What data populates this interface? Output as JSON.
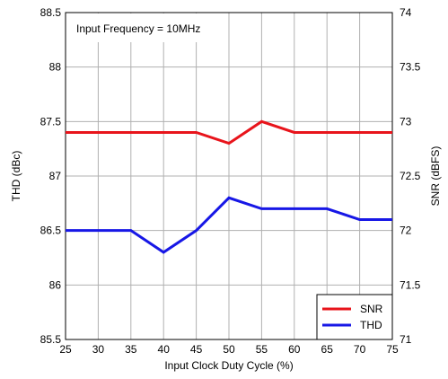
{
  "chart_data": {
    "type": "line",
    "annotation": "Input Frequency = 10MHz",
    "xlabel": "Input Clock Duty Cycle  (%)",
    "ylabel_left": "THD (dBc)",
    "ylabel_right": "SNR (dBFS)",
    "x": [
      25,
      30,
      35,
      40,
      45,
      50,
      55,
      60,
      65,
      70,
      75
    ],
    "xlim": [
      25,
      75
    ],
    "x_ticks": [
      "25",
      "30",
      "35",
      "40",
      "45",
      "50",
      "55",
      "60",
      "65",
      "70",
      "75"
    ],
    "ylim_left": [
      85.5,
      88.5
    ],
    "y_ticks_left": [
      "85.5",
      "86",
      "86.5",
      "87",
      "87.5",
      "88",
      "88.5"
    ],
    "ylim_right": [
      71,
      74
    ],
    "y_ticks_right": [
      "71",
      "71.5",
      "72",
      "72.5",
      "73",
      "73.5",
      "74"
    ],
    "grid": true,
    "legend_position": "bottom-right",
    "series": [
      {
        "name": "SNR",
        "axis": "right",
        "color": "#e8141b",
        "values": [
          72.9,
          72.9,
          72.9,
          72.9,
          72.9,
          72.8,
          73.0,
          72.9,
          72.9,
          72.9,
          72.9
        ]
      },
      {
        "name": "THD",
        "axis": "left",
        "color": "#1717e6",
        "values": [
          86.5,
          86.5,
          86.5,
          86.3,
          86.5,
          86.8,
          86.7,
          86.7,
          86.7,
          86.6,
          86.6
        ]
      }
    ]
  }
}
